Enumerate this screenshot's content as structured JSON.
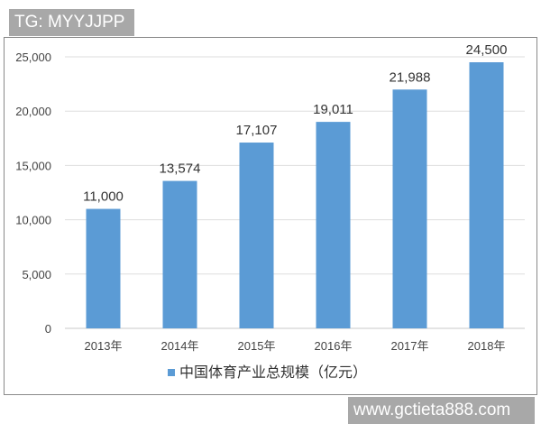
{
  "watermarks": {
    "top_left": "TG: MYYJJPP",
    "bottom_right": "www.gctieta888.com"
  },
  "chart_data": {
    "type": "bar",
    "title": "",
    "xlabel": "",
    "ylabel": "",
    "categories": [
      "2013年",
      "2014年",
      "2015年",
      "2016年",
      "2017年",
      "2018年"
    ],
    "series": [
      {
        "name": "中国体育产业总规模（亿元）",
        "values": [
          11000,
          13574,
          17107,
          19011,
          21988,
          24500
        ],
        "color": "#5b9bd5"
      }
    ],
    "data_labels": [
      "11,000",
      "13,574",
      "17,107",
      "19,011",
      "21,988",
      "24,500"
    ],
    "ylim": [
      0,
      25000
    ],
    "yticks": [
      "0",
      "5,000",
      "10,000",
      "15,000",
      "20,000",
      "25,000"
    ],
    "grid": true,
    "legend_position": "bottom"
  }
}
